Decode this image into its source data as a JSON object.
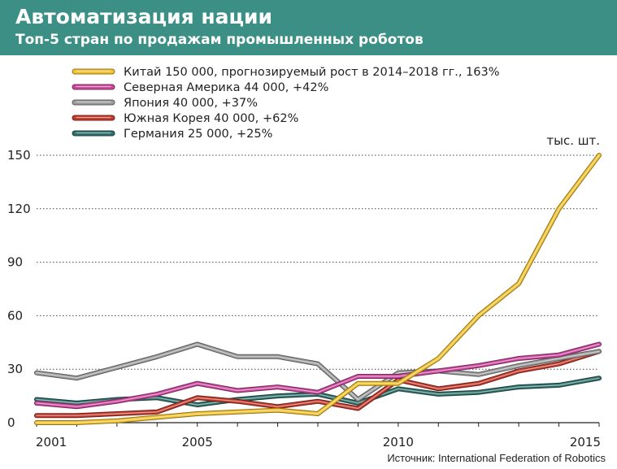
{
  "header": {
    "title": "Автоматизация нации",
    "subtitle": "Топ-5 стран по продажам промышленных роботов"
  },
  "source": "Источник: International Federation of Robotics",
  "chart_data": {
    "type": "line",
    "unit_label": "тыс. шт.",
    "xlim": [
      2001,
      2015
    ],
    "ylim": [
      0,
      150
    ],
    "x_ticks": [
      2001,
      2005,
      2010,
      2015
    ],
    "y_ticks": [
      0,
      30,
      60,
      90,
      120,
      150
    ],
    "grid": "horizontal dotted",
    "legend_position": "top-left",
    "x": [
      2001,
      2002,
      2003,
      2004,
      2005,
      2006,
      2007,
      2008,
      2009,
      2010,
      2011,
      2012,
      2013,
      2014,
      2015
    ],
    "series": [
      {
        "name": "Китай 150 000, прогнозируемый рост в 2014–2018 гг., 163%",
        "color": "#f2c12e",
        "values": [
          0,
          0,
          1,
          3,
          5,
          6,
          7,
          5,
          22,
          22,
          36,
          60,
          78,
          120,
          150
        ]
      },
      {
        "name": "Северная Америка 44 000, +42%",
        "color": "#c8479a",
        "values": [
          11,
          9,
          12,
          16,
          22,
          18,
          20,
          17,
          26,
          26,
          29,
          32,
          36,
          38,
          44
        ]
      },
      {
        "name": "Япония 40 000, +37%",
        "color": "#9a9a9a",
        "values": [
          28,
          25,
          31,
          37,
          44,
          37,
          37,
          33,
          13,
          28,
          29,
          27,
          32,
          36,
          40
        ]
      },
      {
        "name": "Южная Корея 40 000, +62%",
        "color": "#c0392b",
        "values": [
          4,
          4,
          5,
          6,
          14,
          12,
          9,
          12,
          8,
          24,
          19,
          22,
          29,
          33,
          40
        ]
      },
      {
        "name": "Германия 25 000, +25%",
        "color": "#2e6e68",
        "values": [
          13,
          11,
          13,
          14,
          10,
          13,
          15,
          16,
          11,
          19,
          16,
          17,
          20,
          21,
          25
        ]
      }
    ]
  }
}
